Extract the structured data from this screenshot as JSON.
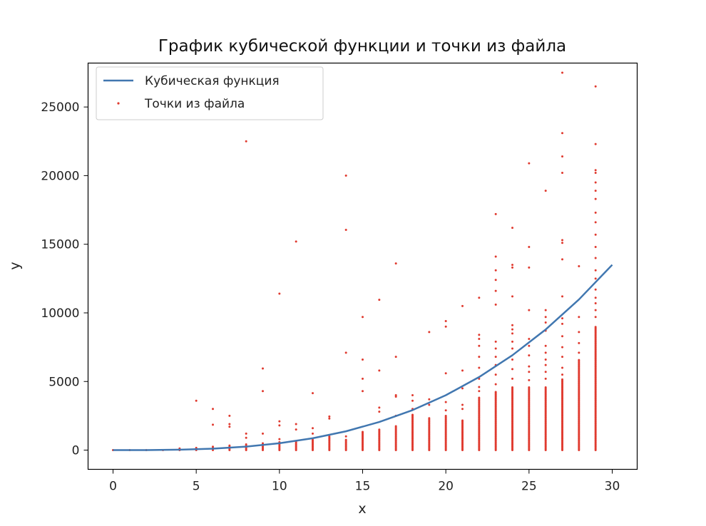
{
  "chart_data": {
    "type": "scatter",
    "title": "График кубической функции и точки из файла",
    "xlabel": "x",
    "ylabel": "y",
    "xlim": [
      -1.5,
      31.5
    ],
    "ylim": [
      -1400,
      28200
    ],
    "x_ticks": [
      0,
      5,
      10,
      15,
      20,
      25,
      30
    ],
    "y_ticks": [
      0,
      5000,
      10000,
      15000,
      20000,
      25000
    ],
    "grid": false,
    "legend_position": "top-left",
    "colors": {
      "line": "#4177b0",
      "points": "#e03a2f"
    },
    "series": [
      {
        "name": "Кубическая функция",
        "kind": "line",
        "x": [
          0,
          2,
          4,
          6,
          8,
          10,
          12,
          14,
          16,
          18,
          20,
          22,
          24,
          26,
          28,
          30
        ],
        "y": [
          0,
          4,
          32,
          108,
          256,
          500,
          864,
          1372,
          2048,
          2916,
          4000,
          5324,
          6912,
          8788,
          10976,
          13500
        ]
      },
      {
        "name": "Точки из файла",
        "kind": "scatter",
        "columns": [
          {
            "x": 0,
            "min": 0,
            "max": 0,
            "extra": []
          },
          {
            "x": 1,
            "min": 0,
            "max": 10,
            "extra": []
          },
          {
            "x": 2,
            "min": 0,
            "max": 20,
            "extra": []
          },
          {
            "x": 3,
            "min": 0,
            "max": 40,
            "extra": []
          },
          {
            "x": 4,
            "min": 0,
            "max": 80,
            "extra": [
              120
            ]
          },
          {
            "x": 5,
            "min": 0,
            "max": 200,
            "extra": [
              3600
            ]
          },
          {
            "x": 6,
            "min": 0,
            "max": 300,
            "extra": [
              1850,
              3000
            ]
          },
          {
            "x": 7,
            "min": 0,
            "max": 350,
            "extra": [
              1700,
              1900,
              2500
            ]
          },
          {
            "x": 8,
            "min": 0,
            "max": 450,
            "extra": [
              900,
              1200,
              22500
            ]
          },
          {
            "x": 9,
            "min": 0,
            "max": 550,
            "extra": [
              1200,
              4300,
              5950
            ]
          },
          {
            "x": 10,
            "min": 0,
            "max": 650,
            "extra": [
              800,
              1800,
              2100,
              11400
            ]
          },
          {
            "x": 11,
            "min": 0,
            "max": 700,
            "extra": [
              1500,
              1900,
              15200
            ]
          },
          {
            "x": 12,
            "min": 0,
            "max": 800,
            "extra": [
              1200,
              1600,
              4150
            ]
          },
          {
            "x": 13,
            "min": 0,
            "max": 1050,
            "extra": [
              2300,
              2450
            ]
          },
          {
            "x": 14,
            "min": 0,
            "max": 800,
            "extra": [
              1000,
              7100,
              16050,
              20000
            ]
          },
          {
            "x": 15,
            "min": 0,
            "max": 1400,
            "extra": [
              4300,
              5200,
              6600,
              9700
            ]
          },
          {
            "x": 16,
            "min": 0,
            "max": 1500,
            "extra": [
              2800,
              3100,
              5800,
              10950
            ]
          },
          {
            "x": 17,
            "min": 0,
            "max": 1800,
            "extra": [
              2500,
              3900,
              4000,
              6800,
              13600
            ]
          },
          {
            "x": 18,
            "min": 0,
            "max": 2600,
            "extra": [
              3000,
              3600,
              4000
            ]
          },
          {
            "x": 19,
            "min": 0,
            "max": 2400,
            "extra": [
              3300,
              3700,
              8600
            ]
          },
          {
            "x": 20,
            "min": 0,
            "max": 2500,
            "extra": [
              2900,
              3500,
              5600,
              9000,
              9400
            ]
          },
          {
            "x": 21,
            "min": 0,
            "max": 2200,
            "extra": [
              3000,
              3300,
              4500,
              5800,
              10500
            ]
          },
          {
            "x": 22,
            "min": 0,
            "max": 3900,
            "extra": [
              4300,
              4600,
              5200,
              6000,
              6800,
              7600,
              8100,
              8400,
              11100
            ]
          },
          {
            "x": 23,
            "min": 0,
            "max": 4300,
            "extra": [
              4800,
              5500,
              6200,
              6800,
              7400,
              7900,
              10600,
              11600,
              12400,
              13100,
              14100,
              17200
            ]
          },
          {
            "x": 24,
            "min": 0,
            "max": 4600,
            "extra": [
              5200,
              5900,
              6600,
              7400,
              7900,
              8500,
              8800,
              9100,
              11200,
              13300,
              13500,
              16200
            ]
          },
          {
            "x": 25,
            "min": 0,
            "max": 4600,
            "extra": [
              5100,
              5700,
              6100,
              6900,
              7600,
              8100,
              10200,
              13300,
              14800,
              20900
            ]
          },
          {
            "x": 26,
            "min": 0,
            "max": 4600,
            "extra": [
              5200,
              5700,
              6200,
              6600,
              7100,
              7600,
              8700,
              9300,
              9700,
              10200,
              18900
            ]
          },
          {
            "x": 27,
            "min": 0,
            "max": 5200,
            "extra": [
              5500,
              6000,
              6800,
              7500,
              8300,
              9200,
              9600,
              11200,
              13900,
              15100,
              15300,
              20200,
              21400,
              23100,
              27500
            ]
          },
          {
            "x": 28,
            "min": 0,
            "max": 6600,
            "extra": [
              7100,
              7800,
              8600,
              9700,
              13400
            ]
          },
          {
            "x": 29,
            "min": 0,
            "max": 9000,
            "extra": [
              9700,
              10200,
              10700,
              11100,
              11700,
              12500,
              13100,
              14000,
              14800,
              15700,
              16600,
              17300,
              18300,
              18900,
              19500,
              20200,
              20400,
              22300,
              26500
            ]
          }
        ]
      }
    ]
  }
}
